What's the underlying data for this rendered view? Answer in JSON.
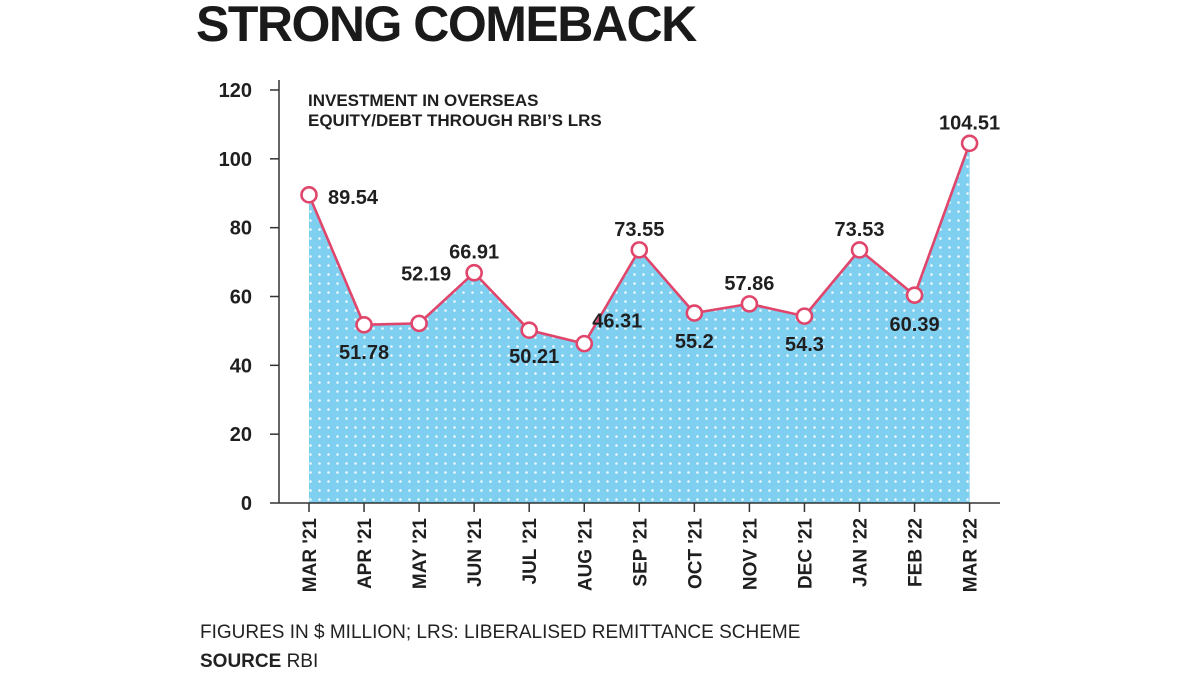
{
  "headline": "STRONG COMEBACK",
  "footer": {
    "note": "FIGURES IN $ MILLION; LRS: LIBERALISED REMITTANCE SCHEME",
    "source_label": "SOURCE",
    "source_value": "RBI"
  },
  "colors": {
    "line": "#e0466b",
    "area": "#7fcff1",
    "dots": "#ffffff",
    "axis": "#333333"
  },
  "chart_data": {
    "type": "area",
    "subtitle_lines": [
      "INVESTMENT IN OVERSEAS",
      "EQUITY/DEBT THROUGH RBI’S LRS"
    ],
    "categories": [
      "MAR '21",
      "APR '21",
      "MAY '21",
      "JUN '21",
      "JUL '21",
      "AUG '21",
      "SEP '21",
      "OCT '21",
      "NOV '21",
      "DEC '21",
      "JAN '22",
      "FEB '22",
      "MAR '22"
    ],
    "values": [
      89.54,
      51.78,
      52.19,
      66.91,
      50.21,
      46.31,
      73.55,
      55.2,
      57.86,
      54.3,
      73.53,
      60.39,
      104.51
    ],
    "value_labels": [
      "89.54",
      "51.78",
      "52.19",
      "66.91",
      "50.21",
      "46.31",
      "73.55",
      "55.2",
      "57.86",
      "54.3",
      "73.53",
      "60.39",
      "104.51"
    ],
    "yticks": [
      0,
      20,
      40,
      60,
      80,
      100,
      120
    ],
    "ylim": [
      0,
      120
    ],
    "unit": "$ million",
    "grid": false,
    "markers": "open-circle"
  }
}
